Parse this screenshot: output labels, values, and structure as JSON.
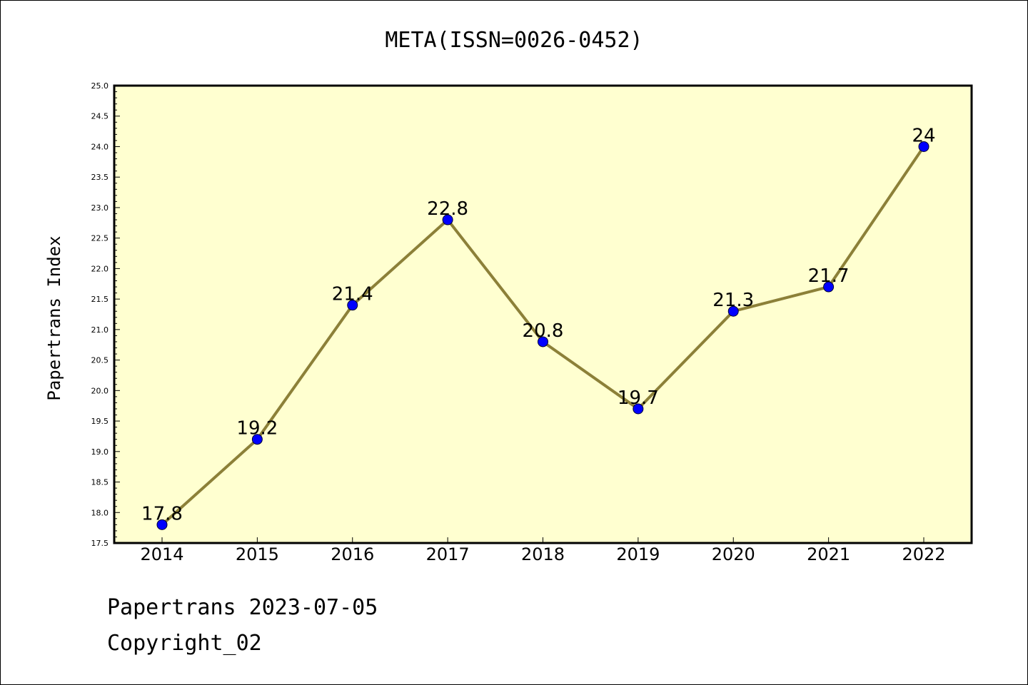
{
  "chart_data": {
    "type": "line",
    "title": "META(ISSN=0026-0452)",
    "xlabel": "",
    "ylabel": "Papertrans Index",
    "categories": [
      "2014",
      "2015",
      "2016",
      "2017",
      "2018",
      "2019",
      "2020",
      "2021",
      "2022"
    ],
    "series": [
      {
        "values": [
          17.8,
          19.2,
          21.4,
          22.8,
          20.8,
          19.7,
          21.3,
          21.7,
          24
        ],
        "data_labels": [
          "17.8",
          "19.2",
          "21.4",
          "22.8",
          "20.8",
          "19.7",
          "21.3",
          "21.7",
          "24"
        ]
      }
    ],
    "ylim": [
      17.5,
      25.0
    ],
    "yticks": [
      "17.5",
      "18.0",
      "18.5",
      "19.0",
      "19.5",
      "20.0",
      "20.5",
      "21.0",
      "21.5",
      "22.0",
      "22.5",
      "23.0",
      "23.5",
      "24.0",
      "24.5",
      "25.0"
    ],
    "grid": false,
    "colors": {
      "plot_background": "#ffffd0",
      "line": "#8c8038",
      "marker": "#0000ff"
    }
  },
  "footer": {
    "line1": "Papertrans 2023-07-05",
    "line2": "Copyright_02"
  }
}
